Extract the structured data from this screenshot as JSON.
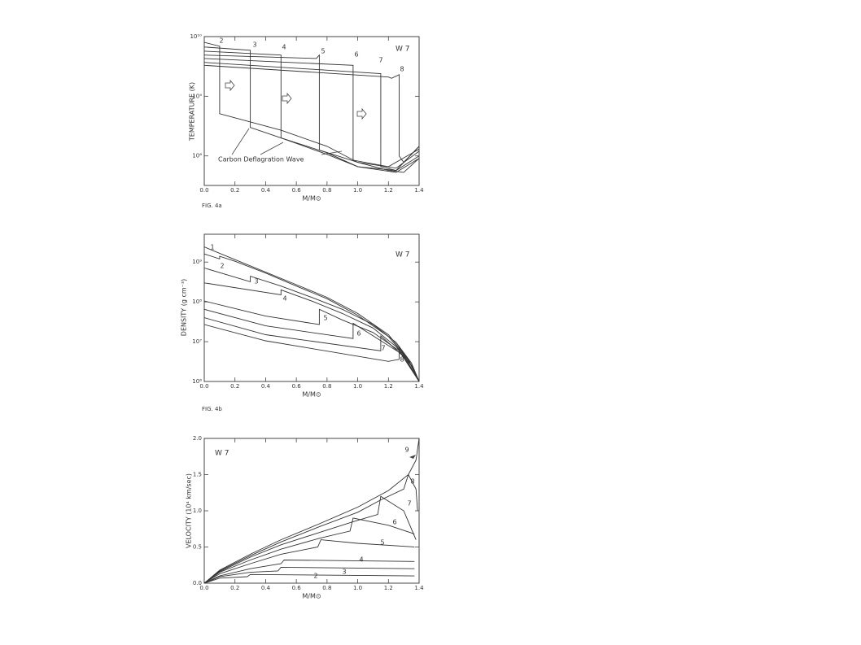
{
  "chart_data": [
    {
      "type": "line",
      "title": "W 7",
      "y_label": "TEMPERATURE (K)",
      "x_label": "M/M⊙",
      "caption": "FIG. 4a",
      "annotation": "Carbon Deflagration Wave",
      "log_scale": true,
      "xlim": [
        0,
        1.4
      ],
      "ylim": [
        32000000,
        10000000000
      ],
      "xticks": [
        {
          "value": 0,
          "label": "0.0"
        },
        0.2,
        0.4,
        0.6,
        0.8,
        {
          "value": 1,
          "label": "1.0"
        },
        1.2,
        1.4
      ],
      "yticks": [
        {
          "value": 10000000000,
          "label": "10¹⁰"
        },
        {
          "value": 1000000000,
          "label": "10⁹"
        },
        {
          "value": 100000000,
          "label": "10⁸"
        }
      ],
      "series": [
        {
          "name": "2",
          "color": "#333333",
          "x": [
            0,
            0.1,
            0.1,
            0.5,
            0.8,
            1.0,
            1.2,
            1.3,
            1.4
          ],
          "values": [
            8000000000.0,
            6900000000.0,
            510000000.0,
            270000000.0,
            145000000.0,
            78000000.0,
            57000000.0,
            53000000.0,
            91000000.0
          ]
        },
        {
          "name": "3",
          "color": "#333333",
          "x": [
            0,
            0.3,
            0.3,
            0.5,
            0.8,
            1.0,
            1.25,
            1.4
          ],
          "values": [
            6700000000.0,
            5900000000.0,
            300000000.0,
            200000000.0,
            113000000.0,
            66000000.0,
            53000000.0,
            91000000.0
          ]
        },
        {
          "name": "4",
          "color": "#333333",
          "x": [
            0,
            0.5,
            0.5,
            0.8,
            1.0,
            1.25,
            1.4
          ],
          "values": [
            5700000000.0,
            4900000000.0,
            200000000.0,
            106000000.0,
            66000000.0,
            57000000.0,
            100000000.0
          ]
        },
        {
          "name": "5",
          "color": "#333333",
          "x": [
            0,
            0.73,
            0.75,
            0.75,
            1.0,
            1.25,
            1.4
          ],
          "values": [
            4900000000.0,
            4300000000.0,
            4900000000.0,
            125000000.0,
            78000000.0,
            62500000.0,
            120000000.0
          ]
        },
        {
          "name": "6",
          "color": "#333333",
          "x": [
            0,
            0.97,
            0.97,
            1.2,
            1.4
          ],
          "values": [
            4300000000.0,
            3300000000.0,
            85000000.0,
            66000000.0,
            130000000.0
          ]
        },
        {
          "name": "7",
          "color": "#333333",
          "x": [
            0,
            1.15,
            1.15,
            1.25,
            1.4
          ],
          "values": [
            3700000000.0,
            2400000000.0,
            66000000.0,
            57000000.0,
            145000000.0
          ]
        },
        {
          "name": "8",
          "color": "#333333",
          "x": [
            0,
            1.2,
            1.22,
            1.27,
            1.27,
            1.3,
            1.4
          ],
          "values": [
            3300000000.0,
            2100000000.0,
            2000000000.0,
            2300000000.0,
            100000000.0,
            78000000.0,
            145000000.0
          ]
        }
      ]
    },
    {
      "type": "line",
      "title": "W 7",
      "y_label": "DENSITY (g cm⁻³)",
      "x_label": "M/M⊙",
      "caption": "FIG. 4b",
      "log_scale": true,
      "xlim": [
        0,
        1.4
      ],
      "ylim": [
        1000000,
        5000000000
      ],
      "xticks": [
        {
          "value": 0,
          "label": "0.0"
        },
        0.2,
        0.4,
        0.6,
        0.8,
        {
          "value": 1,
          "label": "1.0"
        },
        1.2,
        1.4
      ],
      "yticks": [
        {
          "value": 1000000000,
          "label": "10⁹"
        },
        {
          "value": 100000000,
          "label": "10⁸"
        },
        {
          "value": 10000000,
          "label": "10⁷"
        },
        {
          "value": 1000000,
          "label": "10⁶"
        }
      ],
      "series": [
        {
          "name": "1",
          "color": "#333333",
          "x": [
            0,
            0.2,
            0.4,
            0.6,
            0.8,
            1.0,
            1.2,
            1.33,
            1.4
          ],
          "values": [
            2400000000.0,
            1150000000.0,
            560000000.0,
            270000000.0,
            130000000.0,
            51000000.0,
            15000000.0,
            3600000.0,
            1000000.0
          ]
        },
        {
          "name": "2",
          "color": "#333333",
          "x": [
            0,
            0.1,
            0.1,
            0.2,
            0.4,
            0.6,
            0.8,
            1.0,
            1.2,
            1.33,
            1.4
          ],
          "values": [
            1600000000.0,
            1200000000.0,
            1400000000.0,
            1050000000.0,
            530000000.0,
            250000000.0,
            120000000.0,
            46000000.0,
            13500000.0,
            3400000.0,
            1000000.0
          ]
        },
        {
          "name": "3",
          "color": "#333333",
          "x": [
            0,
            0.3,
            0.3,
            0.5,
            0.7,
            0.9,
            1.1,
            1.25,
            1.35,
            1.4
          ],
          "values": [
            710000000.0,
            320000000.0,
            440000000.0,
            250000000.0,
            130000000.0,
            65000000.0,
            27000000.0,
            9600000.0,
            2900000.0,
            1000000.0
          ]
        },
        {
          "name": "4",
          "color": "#333333",
          "x": [
            0,
            0.5,
            0.5,
            0.7,
            0.9,
            1.1,
            1.25,
            1.35,
            1.4
          ],
          "values": [
            300000000.0,
            150000000.0,
            200000000.0,
            105000000.0,
            51000000.0,
            22000000.0,
            7500000.0,
            2500000.0,
            1000000.0
          ]
        },
        {
          "name": "5",
          "color": "#333333",
          "x": [
            0,
            0.4,
            0.75,
            0.75,
            0.9,
            1.1,
            1.27,
            1.36,
            1.4
          ],
          "values": [
            105000000.0,
            44000000.0,
            27000000.0,
            65000000.0,
            35000000.0,
            17000000.0,
            5900000.0,
            2300000.0,
            1000000.0
          ]
        },
        {
          "name": "6",
          "color": "#333333",
          "x": [
            0,
            0.4,
            0.97,
            0.97,
            1.1,
            1.28,
            1.4
          ],
          "values": [
            65000000.0,
            25000000.0,
            12000000.0,
            29000000.0,
            14000000.0,
            5100000.0,
            1000000.0
          ]
        },
        {
          "name": "7",
          "color": "#333333",
          "x": [
            0,
            0.4,
            1.15,
            1.15,
            1.3,
            1.4
          ],
          "values": [
            40000000.0,
            15000000.0,
            5900000.0,
            14000000.0,
            4200000.0,
            1000000.0
          ]
        },
        {
          "name": "8",
          "color": "#333333",
          "x": [
            0,
            0.4,
            1.2,
            1.27,
            1.27,
            1.33,
            1.4
          ],
          "values": [
            27000000.0,
            10500000.0,
            3200000.0,
            3600000.0,
            7500000.0,
            2900000.0,
            1000000.0
          ]
        }
      ]
    },
    {
      "type": "line",
      "title": "W 7",
      "y_label": "VELOCITY (10⁴ km/sec)",
      "x_label": "M/M⊙",
      "log_scale": false,
      "xlim": [
        0,
        1.4
      ],
      "ylim": [
        0,
        2
      ],
      "xticks": [
        {
          "value": 0,
          "label": "0.0"
        },
        0.2,
        0.4,
        0.6,
        0.8,
        {
          "value": 1,
          "label": "1.0"
        },
        1.2,
        1.4
      ],
      "yticks": [
        {
          "value": 0,
          "label": "0.0"
        },
        0.5,
        {
          "value": 1,
          "label": "1.0"
        },
        1.5,
        {
          "value": 2,
          "label": "2.0"
        }
      ],
      "series": [
        {
          "name": "2",
          "color": "#333333",
          "x": [
            0,
            0.1,
            0.28,
            0.3,
            1.37
          ],
          "values": [
            0,
            0.07,
            0.09,
            0.12,
            0.1
          ]
        },
        {
          "name": "3",
          "color": "#333333",
          "x": [
            0,
            0.1,
            0.3,
            0.48,
            0.5,
            1.37
          ],
          "values": [
            0,
            0.09,
            0.15,
            0.17,
            0.22,
            0.2
          ]
        },
        {
          "name": "4",
          "color": "#333333",
          "x": [
            0,
            0.1,
            0.3,
            0.5,
            0.52,
            1.37
          ],
          "values": [
            0,
            0.1,
            0.2,
            0.27,
            0.32,
            0.3
          ]
        },
        {
          "name": "5",
          "color": "#333333",
          "x": [
            0,
            0.1,
            0.3,
            0.5,
            0.74,
            0.76,
            1.0,
            1.37
          ],
          "values": [
            0,
            0.13,
            0.27,
            0.4,
            0.5,
            0.6,
            0.55,
            0.5
          ]
        },
        {
          "name": "6",
          "color": "#333333",
          "x": [
            0,
            0.1,
            0.3,
            0.5,
            0.75,
            0.95,
            0.97,
            1.2,
            1.37
          ],
          "values": [
            0,
            0.15,
            0.32,
            0.47,
            0.62,
            0.72,
            0.9,
            0.8,
            0.68
          ]
        },
        {
          "name": "7",
          "color": "#333333",
          "x": [
            0,
            0.1,
            0.3,
            0.5,
            0.75,
            0.97,
            1.13,
            1.15,
            1.3,
            1.38
          ],
          "values": [
            0,
            0.16,
            0.36,
            0.53,
            0.7,
            0.85,
            0.95,
            1.2,
            1.0,
            0.6
          ]
        },
        {
          "name": "8",
          "color": "#333333",
          "x": [
            0,
            0.1,
            0.3,
            0.5,
            0.75,
            1.0,
            1.15,
            1.3,
            1.33,
            1.38,
            1.39
          ],
          "values": [
            0,
            0.17,
            0.38,
            0.57,
            0.78,
            0.98,
            1.15,
            1.3,
            1.5,
            1.3,
            1.0
          ]
        },
        {
          "name": "9",
          "color": "#333333",
          "x": [
            0,
            0.1,
            0.3,
            0.5,
            0.75,
            1.0,
            1.2,
            1.33,
            1.38,
            1.4
          ],
          "values": [
            0,
            0.18,
            0.4,
            0.6,
            0.82,
            1.05,
            1.28,
            1.5,
            1.7,
            2.0
          ]
        }
      ]
    }
  ]
}
